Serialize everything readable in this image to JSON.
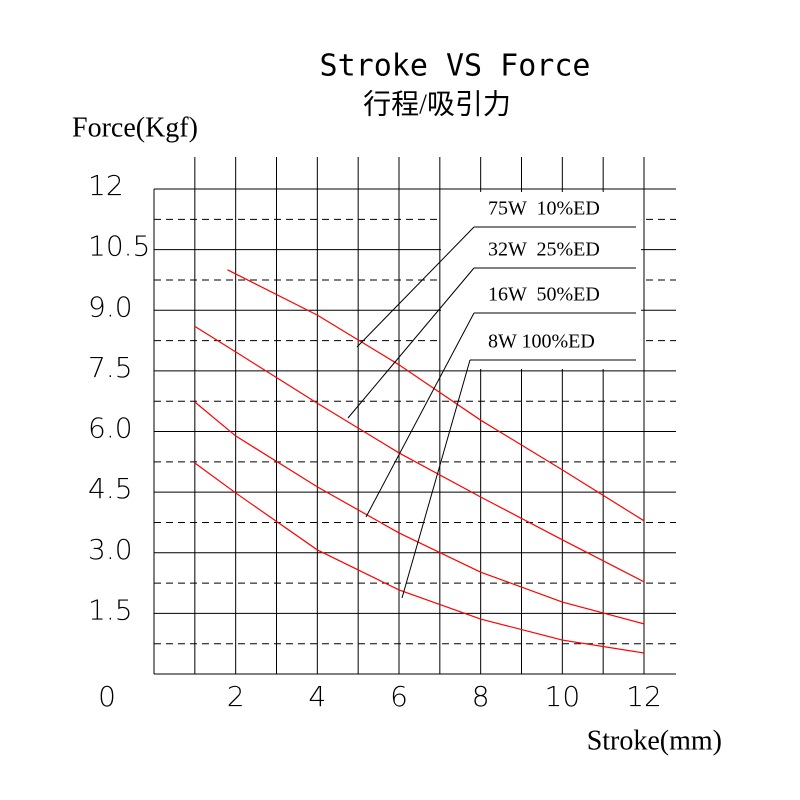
{
  "chart_data": {
    "type": "line",
    "title": "Stroke VS  Force",
    "subtitle": "行程/吸引力",
    "y_label": "Force(Kgf)",
    "x_label": "Stroke(mm)",
    "xlim": [
      0,
      12
    ],
    "ylim": [
      0,
      12
    ],
    "xticks": [
      0,
      2,
      4,
      6,
      8,
      10,
      12
    ],
    "xgrid": [
      1,
      2,
      3,
      4,
      5,
      6,
      7,
      8,
      9,
      10,
      11,
      12
    ],
    "yticks": [
      {
        "value": 1.5,
        "label": "1.5"
      },
      {
        "value": 3,
        "label": "3.0"
      },
      {
        "value": 4.5,
        "label": "4.5"
      },
      {
        "value": 6,
        "label": "6.0"
      },
      {
        "value": 7.5,
        "label": "7.5"
      },
      {
        "value": 9,
        "label": "9.0"
      },
      {
        "value": 10.5,
        "label": "10.5"
      },
      12
    ],
    "yminor": [
      0.75,
      2.25,
      3.75,
      5.25,
      6.75,
      8.25,
      9.75,
      11.25
    ],
    "grid": true,
    "series": [
      {
        "name": "75W  10%ED",
        "color": "#ff0000",
        "x": [
          1.8,
          4,
          6,
          8,
          10,
          12
        ],
        "values": [
          10.0,
          8.88,
          7.65,
          6.28,
          5.05,
          3.79
        ]
      },
      {
        "name": "32W  25%ED",
        "color": "#ff0000",
        "x": [
          1,
          2,
          4,
          6,
          8,
          10,
          12
        ],
        "values": [
          8.6,
          7.97,
          6.7,
          5.47,
          4.38,
          3.32,
          2.28
        ]
      },
      {
        "name": "16W  50%ED",
        "color": "#ff0000",
        "x": [
          1,
          2,
          4,
          6,
          8,
          10,
          12
        ],
        "values": [
          6.73,
          5.89,
          4.63,
          3.49,
          2.52,
          1.78,
          1.24
        ]
      },
      {
        "name": "8W 100%ED",
        "color": "#ff0000",
        "x": [
          1,
          2,
          4,
          6,
          8,
          10,
          12
        ],
        "values": [
          5.22,
          4.48,
          3.07,
          2.08,
          1.36,
          0.84,
          0.52
        ]
      }
    ]
  }
}
